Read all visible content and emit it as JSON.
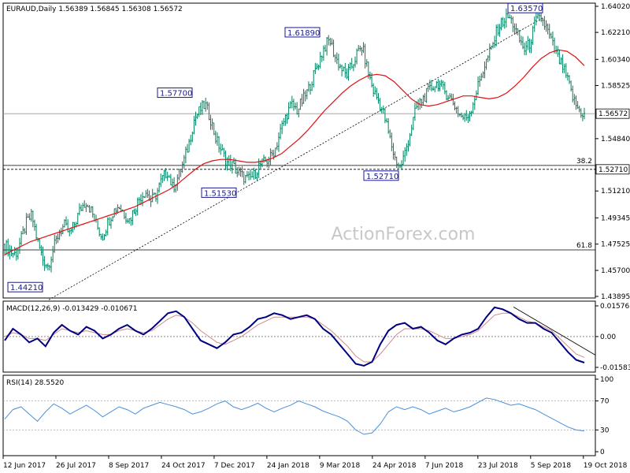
{
  "header": {
    "price": "EURAUD,Daily  1.56389 1.56845 1.56308 1.56572",
    "macd": "MACD(12,26,9) -0.013429 -0.010671",
    "rsi": "RSI(14) 28.5520"
  },
  "watermark": "ActionForex.com",
  "colors": {
    "candle": "#008060",
    "sma": "#e01010",
    "macd_line": "#000080",
    "macd_signal": "#d08a8a",
    "rsi_line": "#4a90d9",
    "trendline": "#000000",
    "callout": "#1a1a8c"
  },
  "chart_data": {
    "type": "candlestick",
    "instrument": "EURAUD",
    "timeframe": "Daily",
    "price_axis": {
      "ylim": [
        1.43895,
        1.6402
      ],
      "ticks": [
        "1.64020",
        "1.62210",
        "1.60340",
        "1.58525",
        "1.56572",
        "1.54840",
        "1.52710",
        "1.51210",
        "1.49345",
        "1.47525",
        "1.45700",
        "1.43895"
      ]
    },
    "time_axis": {
      "labels": [
        "12 Jun 2017",
        "26 Jul 2017",
        "8 Sep 2017",
        "24 Oct 2017",
        "7 Dec 2017",
        "24 Jan 2018",
        "9 Mar 2018",
        "24 Apr 2018",
        "7 Jun 2018",
        "23 Jul 2018",
        "5 Sep 2018",
        "19 Oct 2018"
      ]
    },
    "close_path": [
      1.475,
      1.47,
      1.468,
      1.478,
      1.49,
      1.495,
      1.478,
      1.465,
      1.46,
      1.472,
      1.483,
      1.488,
      1.482,
      1.49,
      1.5,
      1.505,
      1.498,
      1.488,
      1.48,
      1.49,
      1.498,
      1.502,
      1.497,
      1.492,
      1.5,
      1.508,
      1.512,
      1.505,
      1.51,
      1.52,
      1.526,
      1.514,
      1.522,
      1.532,
      1.545,
      1.562,
      1.568,
      1.572,
      1.562,
      1.548,
      1.54,
      1.532,
      1.53,
      1.525,
      1.522,
      1.52,
      1.523,
      1.53,
      1.532,
      1.535,
      1.542,
      1.555,
      1.565,
      1.572,
      1.568,
      1.575,
      1.582,
      1.592,
      1.602,
      1.612,
      1.617,
      1.605,
      1.598,
      1.592,
      1.598,
      1.607,
      1.612,
      1.596,
      1.582,
      1.575,
      1.565,
      1.55,
      1.535,
      1.528,
      1.54,
      1.555,
      1.57,
      1.575,
      1.58,
      1.585,
      1.587,
      1.582,
      1.578,
      1.572,
      1.565,
      1.562,
      1.568,
      1.58,
      1.593,
      1.603,
      1.612,
      1.625,
      1.63,
      1.633,
      1.627,
      1.617,
      1.61,
      1.615,
      1.63,
      1.632,
      1.625,
      1.615,
      1.605,
      1.598,
      1.588,
      1.575,
      1.568,
      1.565
    ],
    "sma_path": [
      1.468,
      1.471,
      1.474,
      1.477,
      1.479,
      1.481,
      1.483,
      1.485,
      1.487,
      1.489,
      1.491,
      1.493,
      1.495,
      1.497,
      1.499,
      1.501,
      1.504,
      1.507,
      1.51,
      1.513,
      1.517,
      1.522,
      1.527,
      1.531,
      1.533,
      1.534,
      1.534,
      1.533,
      1.532,
      1.532,
      1.533,
      1.535,
      1.538,
      1.543,
      1.548,
      1.554,
      1.561,
      1.568,
      1.574,
      1.58,
      1.585,
      1.589,
      1.592,
      1.593,
      1.592,
      1.588,
      1.582,
      1.576,
      1.572,
      1.571,
      1.572,
      1.574,
      1.576,
      1.578,
      1.578,
      1.577,
      1.576,
      1.577,
      1.58,
      1.585,
      1.591,
      1.598,
      1.604,
      1.608,
      1.61,
      1.609,
      1.605,
      1.599
    ],
    "annotations": [
      {
        "label": "1.44210",
        "value": 1.4421
      },
      {
        "label": "1.57700",
        "value": 1.577
      },
      {
        "label": "1.51530",
        "value": 1.5153
      },
      {
        "label": "1.61890",
        "value": 1.6189
      },
      {
        "label": "1.52710",
        "value": 1.5271
      },
      {
        "label": "1.63570",
        "value": 1.6357
      }
    ],
    "levels": [
      {
        "label": "38.2",
        "value": 1.5298,
        "style": "solid"
      },
      {
        "label": "",
        "value": 1.5271,
        "style": "dashed"
      },
      {
        "label": "61.8",
        "value": 1.4712,
        "style": "solid"
      },
      {
        "label": "",
        "value": 1.56572,
        "style": "solid"
      }
    ],
    "current_price_label": "1.56572",
    "level_price_label": "1.52710",
    "macd": {
      "name": "MACD(12,26,9)",
      "ylim": [
        -0.01583,
        0.01576
      ],
      "ticks": [
        "0.015762",
        "0.00",
        "-0.015834"
      ],
      "main": [
        -0.002,
        0.004,
        0.001,
        -0.003,
        -0.001,
        -0.005,
        0.002,
        0.006,
        0.003,
        0.001,
        0.005,
        0.003,
        -0.001,
        0.001,
        0.004,
        0.006,
        0.003,
        0.001,
        0.004,
        0.008,
        0.012,
        0.013,
        0.01,
        0.004,
        -0.002,
        -0.004,
        -0.006,
        -0.003,
        0.001,
        0.002,
        0.005,
        0.009,
        0.01,
        0.012,
        0.011,
        0.009,
        0.01,
        0.011,
        0.009,
        0.004,
        0.001,
        -0.004,
        -0.009,
        -0.014,
        -0.015,
        -0.013,
        -0.004,
        0.003,
        0.006,
        0.007,
        0.004,
        0.005,
        0.002,
        -0.002,
        -0.004,
        -0.001,
        0.001,
        0.002,
        0.004,
        0.01,
        0.015,
        0.014,
        0.012,
        0.009,
        0.007,
        0.007,
        0.004,
        0.002,
        -0.003,
        -0.008,
        -0.012,
        -0.0134
      ],
      "signal": [
        0.0,
        0.002,
        0.001,
        -0.001,
        -0.001,
        -0.002,
        0.001,
        0.004,
        0.003,
        0.002,
        0.003,
        0.002,
        0.001,
        0.001,
        0.003,
        0.004,
        0.003,
        0.002,
        0.003,
        0.006,
        0.009,
        0.011,
        0.01,
        0.007,
        0.003,
        0.0,
        -0.003,
        -0.004,
        -0.002,
        0.0,
        0.003,
        0.006,
        0.008,
        0.01,
        0.01,
        0.01,
        0.01,
        0.01,
        0.009,
        0.006,
        0.003,
        -0.001,
        -0.005,
        -0.01,
        -0.013,
        -0.013,
        -0.009,
        -0.004,
        0.001,
        0.004,
        0.004,
        0.004,
        0.003,
        0.001,
        -0.001,
        -0.001,
        0.0,
        0.001,
        0.003,
        0.007,
        0.011,
        0.012,
        0.012,
        0.01,
        0.008,
        0.007,
        0.005,
        0.003,
        -0.001,
        -0.005,
        -0.009,
        -0.0107
      ]
    },
    "rsi": {
      "name": "RSI(14)",
      "ylim": [
        0,
        100
      ],
      "ticks": [
        "100",
        "70",
        "30",
        "0"
      ],
      "values": [
        45,
        58,
        62,
        52,
        42,
        55,
        66,
        60,
        52,
        58,
        64,
        57,
        48,
        55,
        62,
        58,
        52,
        60,
        64,
        68,
        65,
        62,
        58,
        52,
        55,
        60,
        66,
        70,
        62,
        58,
        62,
        67,
        60,
        55,
        60,
        64,
        70,
        66,
        62,
        56,
        52,
        48,
        42,
        30,
        24,
        26,
        38,
        55,
        62,
        58,
        62,
        58,
        52,
        56,
        60,
        55,
        58,
        62,
        68,
        74,
        72,
        68,
        64,
        66,
        62,
        58,
        52,
        46,
        40,
        34,
        30,
        28.6
      ]
    }
  }
}
